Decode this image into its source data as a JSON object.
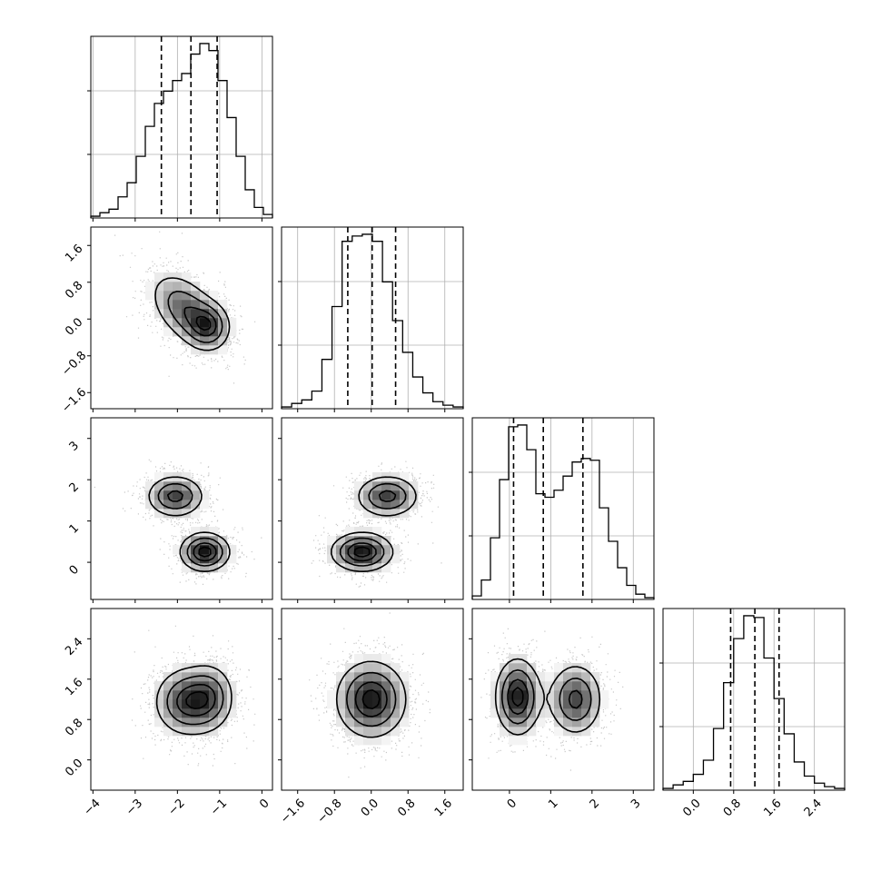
{
  "chart_data": {
    "type": "corner",
    "parameters": [
      {
        "ticks": [
          -4,
          -3,
          -2,
          -1,
          0
        ],
        "tick_labels": [
          "−4",
          "−3",
          "−2",
          "−1",
          "0"
        ],
        "range": [
          -4.05,
          0.25
        ]
      },
      {
        "ticks": [
          -1.6,
          -0.8,
          0.0,
          0.8,
          1.6
        ],
        "tick_labels": [
          "−1.6",
          "−0.8",
          "0.0",
          "0.8",
          "1.6"
        ],
        "range": [
          -1.95,
          2.0
        ]
      },
      {
        "ticks": [
          0,
          1,
          2,
          3
        ],
        "tick_labels": [
          "0",
          "1",
          "2",
          "3"
        ],
        "range": [
          -0.9,
          3.5
        ]
      },
      {
        "ticks": [
          0.0,
          0.8,
          1.6,
          2.4
        ],
        "tick_labels": [
          "0.0",
          "0.8",
          "1.6",
          "2.4"
        ],
        "range": [
          -0.6,
          3.0
        ]
      }
    ],
    "quantiles": [
      [
        -2.38,
        -1.68,
        -1.06
      ],
      [
        -0.51,
        0.02,
        0.53
      ],
      [
        0.1,
        0.82,
        1.78
      ],
      [
        0.74,
        1.22,
        1.7
      ]
    ],
    "histograms": [
      {
        "counts": [
          0.01,
          0.03,
          0.05,
          0.12,
          0.2,
          0.35,
          0.52,
          0.65,
          0.72,
          0.78,
          0.82,
          0.93,
          0.99,
          0.95,
          0.78,
          0.57,
          0.35,
          0.16,
          0.06,
          0.02
        ]
      },
      {
        "counts": [
          0.01,
          0.03,
          0.05,
          0.1,
          0.28,
          0.58,
          0.95,
          0.98,
          0.99,
          0.95,
          0.72,
          0.5,
          0.32,
          0.18,
          0.09,
          0.04,
          0.02,
          0.01
        ]
      },
      {
        "counts": [
          0.02,
          0.11,
          0.35,
          0.68,
          0.98,
          0.99,
          0.85,
          0.6,
          0.58,
          0.62,
          0.7,
          0.78,
          0.8,
          0.79,
          0.52,
          0.33,
          0.18,
          0.08,
          0.03,
          0.01
        ]
      },
      {
        "counts": [
          0.01,
          0.03,
          0.05,
          0.09,
          0.17,
          0.35,
          0.61,
          0.86,
          0.99,
          0.98,
          0.75,
          0.52,
          0.32,
          0.16,
          0.08,
          0.04,
          0.02,
          0.01
        ]
      }
    ],
    "y_ticks_hist": [
      0.35,
      0.7
    ],
    "pair_panels": [
      {
        "x_param": 0,
        "y_param": 1,
        "components": [
          {
            "mx": -1.8,
            "my": 0.2,
            "sx": 0.5,
            "sy": 0.48,
            "rho": -0.45,
            "w": 0.55
          },
          {
            "mx": -1.25,
            "my": -0.15,
            "sx": 0.3,
            "sy": 0.3,
            "rho": 0.0,
            "w": 0.45
          }
        ]
      },
      {
        "x_param": 0,
        "y_param": 2,
        "components": [
          {
            "mx": -2.05,
            "my": 1.6,
            "sx": 0.4,
            "sy": 0.3,
            "rho": 0.0,
            "w": 0.45
          },
          {
            "mx": -1.35,
            "my": 0.25,
            "sx": 0.35,
            "sy": 0.28,
            "rho": 0.0,
            "w": 0.55
          }
        ]
      },
      {
        "x_param": 1,
        "y_param": 2,
        "components": [
          {
            "mx": 0.35,
            "my": 1.6,
            "sx": 0.4,
            "sy": 0.3,
            "rho": 0.0,
            "w": 0.45
          },
          {
            "mx": -0.2,
            "my": 0.25,
            "sx": 0.4,
            "sy": 0.28,
            "rho": 0.0,
            "w": 0.55
          }
        ]
      },
      {
        "x_param": 0,
        "y_param": 3,
        "components": [
          {
            "mx": -1.8,
            "my": 1.15,
            "sx": 0.45,
            "sy": 0.4,
            "rho": 0.0,
            "w": 0.6
          },
          {
            "mx": -1.2,
            "my": 1.25,
            "sx": 0.35,
            "sy": 0.4,
            "rho": 0.0,
            "w": 0.4
          }
        ]
      },
      {
        "x_param": 1,
        "y_param": 3,
        "components": [
          {
            "mx": 0.0,
            "my": 1.2,
            "sx": 0.45,
            "sy": 0.45,
            "rho": 0.0,
            "w": 1.0
          }
        ]
      },
      {
        "x_param": 2,
        "y_param": 3,
        "components": [
          {
            "mx": 0.2,
            "my": 1.25,
            "sx": 0.32,
            "sy": 0.45,
            "rho": 0.0,
            "w": 0.55
          },
          {
            "mx": 1.6,
            "my": 1.2,
            "sx": 0.38,
            "sy": 0.42,
            "rho": 0.0,
            "w": 0.45
          }
        ]
      }
    ],
    "contour_levels": [
      0.25,
      0.5,
      0.75,
      0.92
    ],
    "grid": true,
    "colors": {
      "line": "#000000",
      "grid": "#b0b0b0",
      "scatter": "#9a9a9a",
      "density_dark": "#1a1a1a"
    }
  }
}
